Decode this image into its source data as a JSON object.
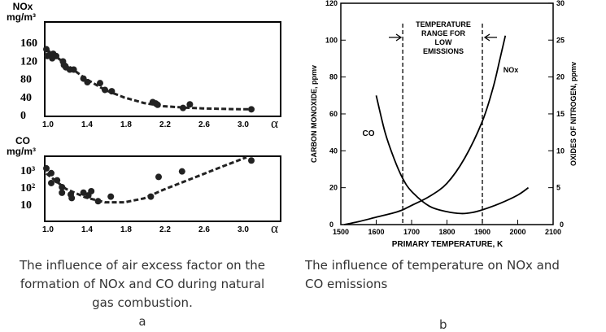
{
  "chart_data": [
    {
      "type": "scatter",
      "panel": "a-top",
      "ylabel_line1": "NOx",
      "ylabel_line2": "mg/m³",
      "xlabel": "α",
      "xlim": [
        1.0,
        3.2
      ],
      "ylim": [
        0,
        175
      ],
      "xticks": [
        1.0,
        1.4,
        1.8,
        2.2,
        2.6,
        3.0
      ],
      "xtick_labels": [
        "1.0",
        "1.4",
        "1.8",
        "2.2",
        "2.6",
        "3.0"
      ],
      "yticks": [
        0,
        40,
        80,
        120,
        160
      ],
      "ytick_labels": [
        "0",
        "40",
        "80",
        "120",
        "160"
      ],
      "points": [
        [
          1.0,
          145
        ],
        [
          1.01,
          130
        ],
        [
          1.03,
          132
        ],
        [
          1.06,
          125
        ],
        [
          1.07,
          135
        ],
        [
          1.1,
          130
        ],
        [
          1.17,
          118
        ],
        [
          1.18,
          110
        ],
        [
          1.2,
          105
        ],
        [
          1.24,
          100
        ],
        [
          1.28,
          100
        ],
        [
          1.38,
          80
        ],
        [
          1.42,
          72
        ],
        [
          1.55,
          70
        ],
        [
          1.6,
          55
        ],
        [
          1.67,
          52
        ],
        [
          2.09,
          28
        ],
        [
          2.12,
          25
        ],
        [
          2.14,
          22
        ],
        [
          2.4,
          15
        ],
        [
          2.47,
          23
        ],
        [
          3.1,
          12
        ]
      ],
      "fit": [
        [
          1.0,
          145
        ],
        [
          1.2,
          112
        ],
        [
          1.4,
          80
        ],
        [
          1.6,
          55
        ],
        [
          1.8,
          38
        ],
        [
          2.0,
          26
        ],
        [
          2.2,
          19
        ],
        [
          2.4,
          16
        ],
        [
          2.6,
          14
        ],
        [
          2.8,
          13
        ],
        [
          3.0,
          12
        ],
        [
          3.1,
          12
        ]
      ]
    },
    {
      "type": "scatter",
      "panel": "a-bottom",
      "ylabel_line1": "CO",
      "ylabel_line2": "mg/m³",
      "xlabel": "α",
      "yscale": "log",
      "xlim": [
        1.0,
        3.2
      ],
      "ylim": [
        1,
        6000
      ],
      "xticks": [
        1.0,
        1.4,
        1.8,
        2.2,
        2.6,
        3.0
      ],
      "xtick_labels": [
        "1.0",
        "1.4",
        "1.8",
        "2.2",
        "2.6",
        "3.0"
      ],
      "yticks": [
        10,
        100,
        1000
      ],
      "ytick_labels": [
        "10",
        "10²",
        "10³"
      ],
      "points": [
        [
          1.0,
          1259
        ],
        [
          1.05,
          661
        ],
        [
          1.05,
          174
        ],
        [
          1.11,
          251
        ],
        [
          1.16,
          100
        ],
        [
          1.16,
          47
        ],
        [
          1.25,
          37
        ],
        [
          1.26,
          23
        ],
        [
          1.38,
          48
        ],
        [
          1.43,
          33
        ],
        [
          1.46,
          58
        ],
        [
          1.53,
          15
        ],
        [
          1.66,
          28
        ],
        [
          2.07,
          28
        ],
        [
          2.15,
          398
        ],
        [
          2.39,
          832
        ],
        [
          3.1,
          3631
        ]
      ],
      "fit": [
        [
          1.0,
          631
        ],
        [
          1.2,
          79
        ],
        [
          1.4,
          25
        ],
        [
          1.6,
          13
        ],
        [
          1.8,
          13
        ],
        [
          2.0,
          22
        ],
        [
          2.2,
          71
        ],
        [
          2.4,
          200
        ],
        [
          2.6,
          562
        ],
        [
          2.8,
          1585
        ],
        [
          3.05,
          5623
        ]
      ]
    },
    {
      "type": "line",
      "panel": "b",
      "xlabel": "PRIMARY TEMPERATURE, K",
      "ylabel": "CARBON MONOXIDE, ppmv",
      "y2label": "OXIDES OF NITROGEN, ppmv",
      "xlim": [
        1500,
        2100
      ],
      "ylim": [
        0,
        120
      ],
      "y2lim": [
        0,
        30
      ],
      "xticks": [
        1500,
        1600,
        1700,
        1800,
        1900,
        2000,
        2100
      ],
      "yticks": [
        0,
        20,
        40,
        60,
        80,
        100,
        120
      ],
      "y2ticks": [
        0,
        5,
        10,
        15,
        20,
        25,
        30
      ],
      "annotation": [
        "TEMPERATURE",
        "RANGE FOR",
        "LOW",
        "EMISSIONS"
      ],
      "range_lines": [
        1675,
        1900
      ],
      "series": [
        {
          "name": "CO",
          "axis": "left",
          "x": [
            1600,
            1625,
            1650,
            1675,
            1700,
            1750,
            1800,
            1840,
            1870,
            1900,
            1950,
            2000,
            2030
          ],
          "y": [
            70,
            50,
            36,
            25,
            18,
            10,
            7,
            6,
            6.5,
            8,
            11.5,
            16,
            20
          ]
        },
        {
          "name": "NOx",
          "axis": "right",
          "x": [
            1510,
            1550,
            1600,
            1650,
            1675,
            1700,
            1750,
            1800,
            1850,
            1900,
            1930,
            1950,
            1965
          ],
          "y": [
            0,
            0.4,
            1.0,
            1.6,
            2.0,
            2.6,
            3.8,
            5.6,
            9,
            14,
            18.5,
            22.5,
            25.6
          ]
        }
      ]
    }
  ],
  "captions": {
    "a_lines": [
      "The influence of air excess factor on the",
      "formation of NOx and CO during natural",
      "gas combustion."
    ],
    "a_letter": "a",
    "b_lines": [
      "The influence of temperature on NOx and",
      "CO emissions"
    ],
    "b_letter": "b"
  }
}
